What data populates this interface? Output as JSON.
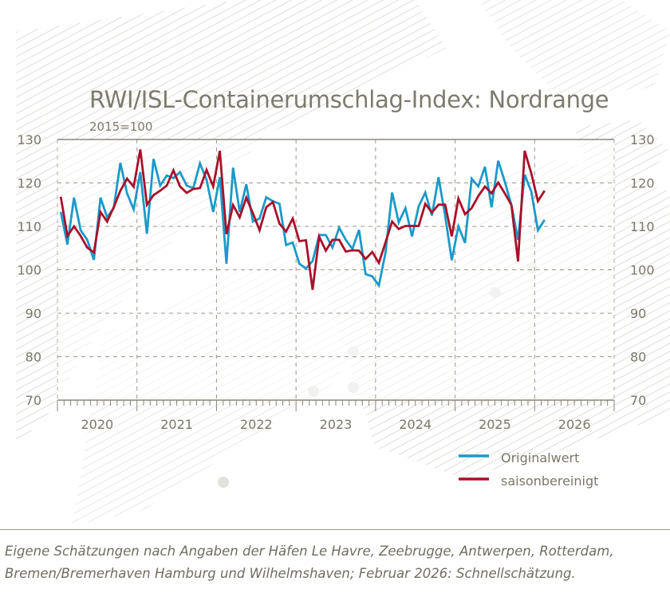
{
  "chart_data": {
    "type": "line",
    "title": "RWI/ISL-Containerumschlag-Index: Nordrange",
    "subtitle": "2015=100",
    "x_start": "2020-01",
    "x_end": "2026-02",
    "frequency": "monthly",
    "xlim": [
      "2020-01",
      "2026-12"
    ],
    "x_tick_labels": [
      "2020",
      "2021",
      "2022",
      "2023",
      "2024",
      "2025",
      "2026"
    ],
    "ylim": [
      70,
      130
    ],
    "y_ticks": [
      70,
      80,
      90,
      100,
      110,
      120,
      130
    ],
    "grid": true,
    "legend_position": "bottom-right",
    "series": [
      {
        "name": "Originalwert",
        "color": "#1a9ac9",
        "values": [
          113.3,
          105.8,
          116.6,
          109.1,
          106.9,
          102.3,
          116.6,
          112.1,
          114.2,
          124.6,
          117.6,
          113.9,
          122.5,
          108.3,
          125.5,
          119.4,
          121.7,
          121.1,
          122.5,
          119.4,
          118.8,
          124.5,
          120.7,
          113.3,
          121.3,
          101.4,
          123.5,
          113.3,
          119.7,
          111.1,
          111.8,
          116.7,
          115.8,
          115.2,
          105.7,
          106.3,
          101.4,
          100.3,
          102.0,
          108.0,
          108.0,
          105.1,
          109.7,
          106.9,
          104.8,
          109.2,
          99.0,
          98.5,
          96.4,
          103.9,
          117.8,
          110.9,
          114.2,
          107.7,
          114.6,
          117.8,
          112.5,
          121.3,
          112.4,
          102.2,
          110.0,
          106.2,
          121.0,
          119.2,
          123.7,
          114.4,
          125.1,
          120.3,
          114.9,
          106.9,
          121.9,
          118.0,
          109.1,
          111.5
        ]
      },
      {
        "name": "saisonbereinigt",
        "color": "#a8102a",
        "values": [
          116.8,
          107.8,
          110.0,
          107.8,
          105.1,
          104.0,
          113.3,
          111.1,
          114.4,
          118.2,
          121.0,
          119.1,
          127.7,
          115.0,
          117.2,
          118.2,
          119.4,
          122.9,
          119.2,
          117.7,
          118.6,
          118.8,
          123.0,
          119.2,
          127.4,
          108.2,
          114.9,
          112.1,
          116.6,
          113.0,
          109.1,
          114.4,
          115.6,
          110.6,
          108.8,
          111.8,
          106.6,
          106.8,
          95.4,
          107.6,
          104.4,
          106.9,
          106.9,
          104.2,
          104.5,
          104.4,
          102.5,
          104.1,
          101.6,
          106.3,
          111.1,
          109.4,
          110.1,
          110.1,
          110.1,
          115.2,
          113.2,
          115.0,
          115.0,
          107.7,
          116.4,
          112.8,
          114.2,
          117.0,
          119.2,
          117.6,
          120.1,
          117.6,
          114.9,
          101.9,
          127.4,
          122.2,
          115.8,
          118.2
        ]
      }
    ]
  },
  "footer": {
    "line1": "Eigene Schätzungen nach Angaben der Häfen Le Havre, Zeebrugge, Antwerpen, Rotterdam,",
    "line2": "Bremen/Bremerhaven Hamburg und Wilhelmshaven; Februar 2026: Schnellschätzung."
  },
  "colors": {
    "text": "#7a776b",
    "grid": "#9a978c",
    "hatch": "#d6d4cc"
  }
}
